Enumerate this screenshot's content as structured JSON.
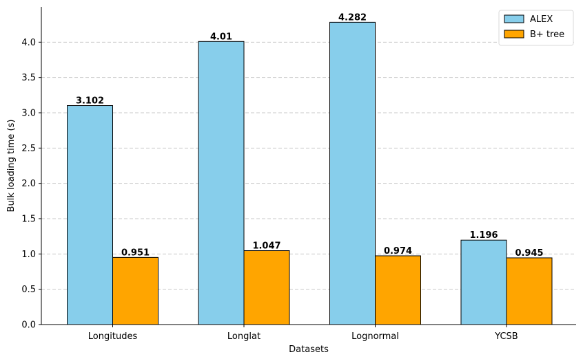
{
  "chart_data": {
    "type": "bar",
    "title": "",
    "xlabel": "Datasets",
    "ylabel": "Bulk loading time (s)",
    "categories": [
      "Longitudes",
      "Longlat",
      "Lognormal",
      "YCSB"
    ],
    "series": [
      {
        "name": "ALEX",
        "values": [
          3.102,
          4.01,
          4.282,
          1.196
        ],
        "labels": [
          "3.102",
          "4.01",
          "4.282",
          "1.196"
        ],
        "color": "#87ceeb"
      },
      {
        "name": "B+ tree",
        "values": [
          0.951,
          1.047,
          0.974,
          0.945
        ],
        "labels": [
          "0.951",
          "1.047",
          "0.974",
          "0.945"
        ],
        "color": "#ffa500"
      }
    ],
    "ylim": [
      0,
      4.5
    ],
    "yticks": [
      0.0,
      0.5,
      1.0,
      1.5,
      2.0,
      2.5,
      3.0,
      3.5,
      4.0
    ],
    "ytick_labels": [
      "0.0",
      "0.5",
      "1.0",
      "1.5",
      "2.0",
      "2.5",
      "3.0",
      "3.5",
      "4.0"
    ],
    "grid": "y-dashed",
    "legend_position": "top-right"
  }
}
